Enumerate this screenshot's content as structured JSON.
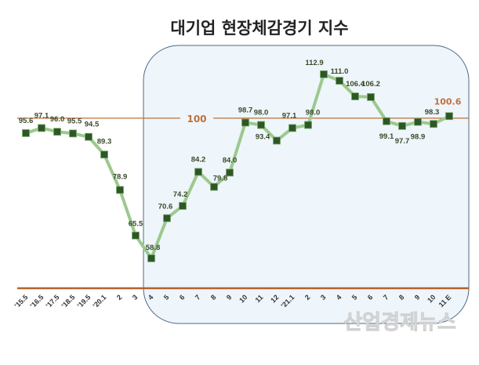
{
  "chart_data": {
    "type": "line",
    "title": "대기업 현장체감경기 지수",
    "categories": [
      "'15.5",
      "'16.5",
      "'17.5",
      "'18.5",
      "'19.5",
      "'20.1",
      "2",
      "3",
      "4",
      "5",
      "6",
      "7",
      "8",
      "9",
      "10",
      "11",
      "12",
      "'21.1",
      "2",
      "3",
      "4",
      "5",
      "6",
      "7",
      "8",
      "9",
      "10",
      "11 E"
    ],
    "series": [
      {
        "name": "대기업 현장체감경기 지수",
        "values": [
          95.6,
          97.1,
          96.0,
          95.5,
          94.5,
          89.3,
          78.9,
          65.5,
          58.8,
          70.6,
          74.2,
          84.2,
          79.8,
          84.0,
          98.7,
          98.0,
          93.4,
          97.1,
          98.0,
          112.9,
          111.0,
          106.4,
          106.2,
          99.1,
          97.7,
          98.9,
          98.3,
          100.6
        ],
        "color": "#9cc98e",
        "marker_color": "#2e5726"
      }
    ],
    "reference_line": {
      "value": 100,
      "label": "100",
      "color": "#c0703a"
    },
    "highlight_range": {
      "from": "4",
      "to": "11 E"
    },
    "xlabel": "",
    "ylabel": "",
    "ylim": [
      50,
      120
    ],
    "grid": false,
    "legend": "none"
  },
  "watermark": "산업경제뉴스"
}
